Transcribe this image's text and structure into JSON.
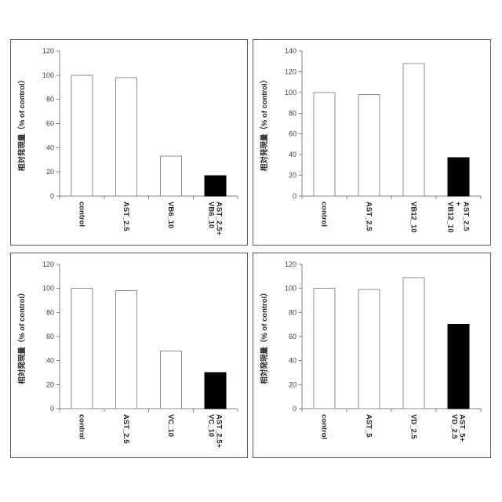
{
  "figure": {
    "description": "Four-panel bar chart figure, relative expression (% of control) for astaxanthin and vitamin combinations",
    "background": "#ffffff"
  },
  "colors": {
    "panel_border": "#595959",
    "axis": "#808080",
    "bar_outline": "#8c8c8c",
    "bar_fill_open": "#ffffff",
    "bar_fill_filled": "#000000",
    "tick_text": "#404040",
    "label_text": "#262626"
  },
  "chart_data": [
    {
      "type": "bar",
      "panel": "top-left",
      "title": "",
      "xlabel": "",
      "ylabel": "相対発現量（% of control）",
      "categories": [
        "control",
        "AST_2.5",
        "VB6_10",
        "AST_2.5+\nVB6_10"
      ],
      "values": [
        100,
        98,
        33,
        17
      ],
      "bar_styles": [
        "open",
        "open",
        "open",
        "filled"
      ],
      "ylim": [
        0,
        120
      ],
      "ytick_interval": 20,
      "yticks": [
        0,
        20,
        40,
        60,
        80,
        100,
        120
      ],
      "grid": false,
      "legend": "none"
    },
    {
      "type": "bar",
      "panel": "top-right",
      "title": "",
      "xlabel": "",
      "ylabel": "相対発現量（% of control）",
      "categories": [
        "control",
        "AST_2.5",
        "VB12_10",
        "AST_2.5\n+\nVB12_10"
      ],
      "values": [
        100,
        98,
        128,
        37
      ],
      "bar_styles": [
        "open",
        "open",
        "open",
        "filled"
      ],
      "ylim": [
        0,
        140
      ],
      "ytick_interval": 20,
      "yticks": [
        0,
        20,
        40,
        60,
        80,
        100,
        120,
        140
      ],
      "grid": false,
      "legend": "none"
    },
    {
      "type": "bar",
      "panel": "bottom-left",
      "title": "",
      "xlabel": "",
      "ylabel": "相対発現量（% of control）",
      "categories": [
        "control",
        "AST_2.5",
        "VC_10",
        "AST_2.5+\nVC_10"
      ],
      "values": [
        100,
        98,
        48,
        30
      ],
      "bar_styles": [
        "open",
        "open",
        "open",
        "filled"
      ],
      "ylim": [
        0,
        120
      ],
      "ytick_interval": 20,
      "yticks": [
        0,
        20,
        40,
        60,
        80,
        100,
        120
      ],
      "grid": false,
      "legend": "none"
    },
    {
      "type": "bar",
      "panel": "bottom-right",
      "title": "",
      "xlabel": "",
      "ylabel": "相対発現量（% of control）",
      "categories": [
        "control",
        "AST_5",
        "VD_2.5",
        "AST_5+\nVD_2.5"
      ],
      "values": [
        100,
        99,
        109,
        70
      ],
      "bar_styles": [
        "open",
        "open",
        "open",
        "filled"
      ],
      "ylim": [
        0,
        120
      ],
      "ytick_interval": 20,
      "yticks": [
        0,
        20,
        40,
        60,
        80,
        100,
        120
      ],
      "grid": false,
      "legend": "none"
    }
  ]
}
